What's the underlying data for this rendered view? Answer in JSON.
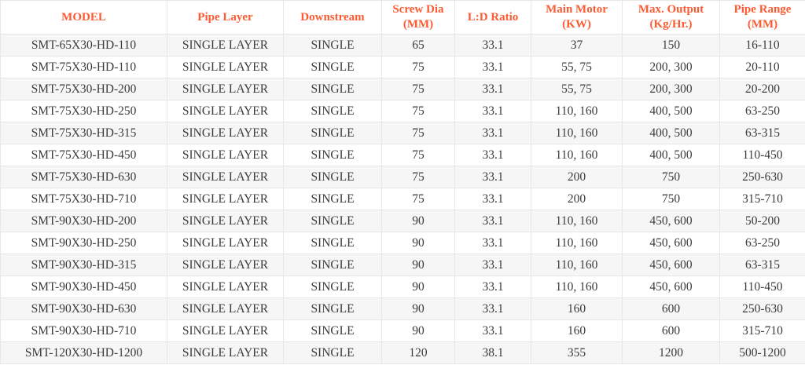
{
  "colors": {
    "header_text": "#fb5b32",
    "body_text": "#3b3b3b",
    "grid_border": "#e7e7e7",
    "stripe_row": "#f6f6f6",
    "background": "#ffffff"
  },
  "table": {
    "columns": [
      {
        "key": "model",
        "label": "MODEL"
      },
      {
        "key": "pipe_layer",
        "label": "Pipe Layer"
      },
      {
        "key": "downstream",
        "label": "Downstream"
      },
      {
        "key": "screw_dia",
        "label": "Screw Dia (MM)"
      },
      {
        "key": "ld_ratio",
        "label": "L:D Ratio"
      },
      {
        "key": "main_motor",
        "label": "Main Motor (KW)"
      },
      {
        "key": "max_output",
        "label": "Max. Output (Kg/Hr.)"
      },
      {
        "key": "pipe_range",
        "label": "Pipe Range (MM)"
      }
    ],
    "rows": [
      {
        "model": "SMT-65X30-HD-110",
        "pipe_layer": "SINGLE LAYER",
        "downstream": "SINGLE",
        "screw_dia": "65",
        "ld_ratio": "33.1",
        "main_motor": "37",
        "max_output": "150",
        "pipe_range": "16-110"
      },
      {
        "model": "SMT-75X30-HD-110",
        "pipe_layer": "SINGLE LAYER",
        "downstream": "SINGLE",
        "screw_dia": "75",
        "ld_ratio": "33.1",
        "main_motor": "55, 75",
        "max_output": "200, 300",
        "pipe_range": "20-110"
      },
      {
        "model": "SMT-75X30-HD-200",
        "pipe_layer": "SINGLE LAYER",
        "downstream": "SINGLE",
        "screw_dia": "75",
        "ld_ratio": "33.1",
        "main_motor": "55, 75",
        "max_output": "200, 300",
        "pipe_range": "20-200"
      },
      {
        "model": "SMT-75X30-HD-250",
        "pipe_layer": "SINGLE LAYER",
        "downstream": "SINGLE",
        "screw_dia": "75",
        "ld_ratio": "33.1",
        "main_motor": "110, 160",
        "max_output": "400, 500",
        "pipe_range": "63-250"
      },
      {
        "model": "SMT-75X30-HD-315",
        "pipe_layer": "SINGLE LAYER",
        "downstream": "SINGLE",
        "screw_dia": "75",
        "ld_ratio": "33.1",
        "main_motor": "110, 160",
        "max_output": "400, 500",
        "pipe_range": "63-315"
      },
      {
        "model": "SMT-75X30-HD-450",
        "pipe_layer": "SINGLE LAYER",
        "downstream": "SINGLE",
        "screw_dia": "75",
        "ld_ratio": "33.1",
        "main_motor": "110, 160",
        "max_output": "400, 500",
        "pipe_range": "110-450"
      },
      {
        "model": "SMT-75X30-HD-630",
        "pipe_layer": "SINGLE LAYER",
        "downstream": "SINGLE",
        "screw_dia": "75",
        "ld_ratio": "33.1",
        "main_motor": "200",
        "max_output": "750",
        "pipe_range": "250-630"
      },
      {
        "model": "SMT-75X30-HD-710",
        "pipe_layer": "SINGLE LAYER",
        "downstream": "SINGLE",
        "screw_dia": "75",
        "ld_ratio": "33.1",
        "main_motor": "200",
        "max_output": "750",
        "pipe_range": "315-710"
      },
      {
        "model": "SMT-90X30-HD-200",
        "pipe_layer": "SINGLE LAYER",
        "downstream": "SINGLE",
        "screw_dia": "90",
        "ld_ratio": "33.1",
        "main_motor": "110, 160",
        "max_output": "450, 600",
        "pipe_range": "50-200"
      },
      {
        "model": "SMT-90X30-HD-250",
        "pipe_layer": "SINGLE LAYER",
        "downstream": "SINGLE",
        "screw_dia": "90",
        "ld_ratio": "33.1",
        "main_motor": "110, 160",
        "max_output": "450, 600",
        "pipe_range": "63-250"
      },
      {
        "model": "SMT-90X30-HD-315",
        "pipe_layer": "SINGLE LAYER",
        "downstream": "SINGLE",
        "screw_dia": "90",
        "ld_ratio": "33.1",
        "main_motor": "110, 160",
        "max_output": "450, 600",
        "pipe_range": "63-315"
      },
      {
        "model": "SMT-90X30-HD-450",
        "pipe_layer": "SINGLE LAYER",
        "downstream": "SINGLE",
        "screw_dia": "90",
        "ld_ratio": "33.1",
        "main_motor": "110, 160",
        "max_output": "450, 600",
        "pipe_range": "110-450"
      },
      {
        "model": "SMT-90X30-HD-630",
        "pipe_layer": "SINGLE LAYER",
        "downstream": "SINGLE",
        "screw_dia": "90",
        "ld_ratio": "33.1",
        "main_motor": "160",
        "max_output": "600",
        "pipe_range": "250-630"
      },
      {
        "model": "SMT-90X30-HD-710",
        "pipe_layer": "SINGLE LAYER",
        "downstream": "SINGLE",
        "screw_dia": "90",
        "ld_ratio": "33.1",
        "main_motor": "160",
        "max_output": "600",
        "pipe_range": "315-710"
      },
      {
        "model": "SMT-120X30-HD-1200",
        "pipe_layer": "SINGLE LAYER",
        "downstream": "SINGLE",
        "screw_dia": "120",
        "ld_ratio": "38.1",
        "main_motor": "355",
        "max_output": "1200",
        "pipe_range": "500-1200"
      }
    ]
  }
}
